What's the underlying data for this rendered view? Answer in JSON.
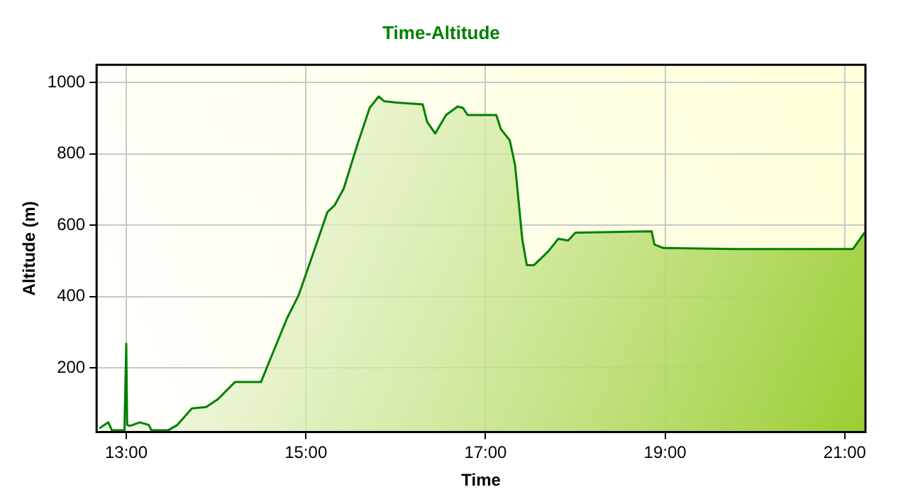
{
  "chart_data": {
    "type": "area",
    "title": "Time-Altitude",
    "xlabel": "Time",
    "ylabel": "Altitude (m)",
    "xlim": [
      12.67,
      21.23
    ],
    "xticks": [
      {
        "value": 13,
        "label": "13:00"
      },
      {
        "value": 15,
        "label": "15:00"
      },
      {
        "value": 17,
        "label": "17:00"
      },
      {
        "value": 19,
        "label": "19:00"
      },
      {
        "value": 21,
        "label": "21:00"
      }
    ],
    "ylim": [
      20,
      1050
    ],
    "yticks": [
      200,
      400,
      600,
      800,
      1000
    ],
    "grid": true,
    "legend": false,
    "marker": "none",
    "line_style": "solid",
    "series": [
      {
        "color": "#008000",
        "x": [
          12.7,
          12.8,
          12.84,
          12.98,
          13.0,
          13.01,
          13.04,
          13.15,
          13.25,
          13.28,
          13.47,
          13.57,
          13.73,
          13.89,
          14.02,
          14.21,
          14.5,
          14.6,
          14.79,
          14.92,
          15.08,
          15.24,
          15.32,
          15.42,
          15.58,
          15.71,
          15.81,
          15.87,
          16.01,
          16.3,
          16.35,
          16.44,
          16.56,
          16.69,
          16.75,
          16.8,
          17.12,
          17.17,
          17.27,
          17.33,
          17.41,
          17.46,
          17.54,
          17.7,
          17.81,
          17.92,
          18.0,
          18.85,
          18.88,
          18.98,
          19.78,
          21.09,
          21.22
        ],
        "values": [
          30,
          47,
          25,
          25,
          267,
          40,
          37,
          47,
          40,
          25,
          25,
          40,
          86,
          90,
          112,
          160,
          160,
          222,
          339,
          404,
          520,
          637,
          656,
          702,
          831,
          929,
          961,
          948,
          944,
          939,
          890,
          857,
          909,
          933,
          929,
          909,
          909,
          870,
          838,
          767,
          559,
          488,
          488,
          527,
          562,
          557,
          579,
          583,
          546,
          536,
          533,
          533,
          579
        ]
      }
    ]
  }
}
